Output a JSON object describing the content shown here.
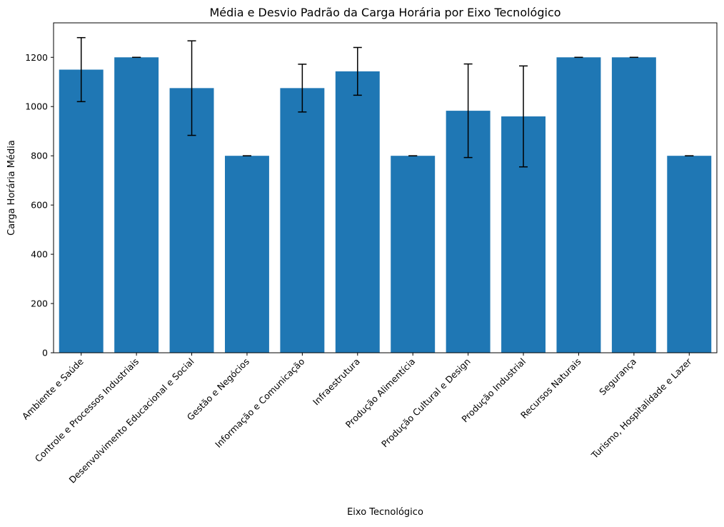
{
  "chart_data": {
    "type": "bar",
    "title": "Média e Desvio Padrão da Carga Horária por Eixo Tecnológico",
    "xlabel": "Eixo Tecnológico",
    "ylabel": "Carga Horária Média",
    "ylim": [
      0,
      1340
    ],
    "yticks": [
      0,
      200,
      400,
      600,
      800,
      1000,
      1200
    ],
    "grid": false,
    "legend": "none",
    "bar_color": "#1f77b4",
    "error_color": "#000000",
    "categories": [
      "Ambiente e Saúde",
      "Controle e Processos Industriais",
      "Desenvolvimento Educacional e Social",
      "Gestão e Negócios",
      "Informação e Comunicação",
      "Infraestrutura",
      "Produção Alimentícia",
      "Produção Cultural e Design",
      "Produção Industrial",
      "Recursos Naturais",
      "Segurança",
      "Turismo, Hospitalidade e Lazer"
    ],
    "values": [
      1150,
      1200,
      1075,
      800,
      1075,
      1143,
      800,
      983,
      960,
      1200,
      1200,
      800
    ],
    "errors": [
      130,
      0,
      192,
      0,
      97,
      97,
      0,
      190,
      205,
      0,
      0,
      0
    ]
  }
}
